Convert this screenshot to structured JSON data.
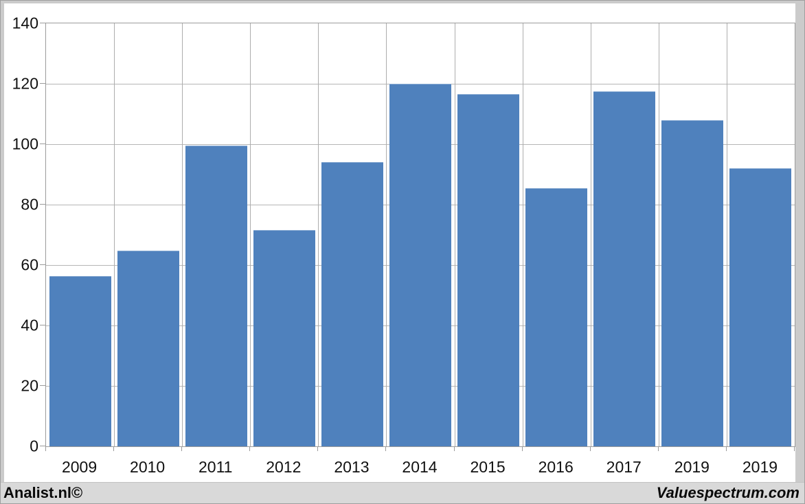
{
  "chart_data": {
    "type": "bar",
    "categories": [
      "2009",
      "2010",
      "2011",
      "2012",
      "2013",
      "2014",
      "2015",
      "2016",
      "2017",
      "2019",
      "2019"
    ],
    "values": [
      56.3,
      64.8,
      99.5,
      71.5,
      94,
      120,
      116.5,
      85.5,
      117.5,
      108,
      92
    ],
    "title": "",
    "xlabel": "",
    "ylabel": "",
    "ylim": [
      0,
      140
    ],
    "ytick_step": 20,
    "ytick_labels": [
      "0",
      "20",
      "40",
      "60",
      "80",
      "100",
      "120",
      "140"
    ],
    "grid": true,
    "legend": null,
    "bar_color": "#4f81bd",
    "gridline_color": "#b5b5b5",
    "axis_color": "#9b9b9b",
    "plot_background": "#ffffff"
  },
  "footer": {
    "left_text": "Analist.nl©",
    "right_text": "Valuespectrum.com",
    "background": "#d9d9d9"
  },
  "frame": {
    "color": "#cbcbcb"
  }
}
